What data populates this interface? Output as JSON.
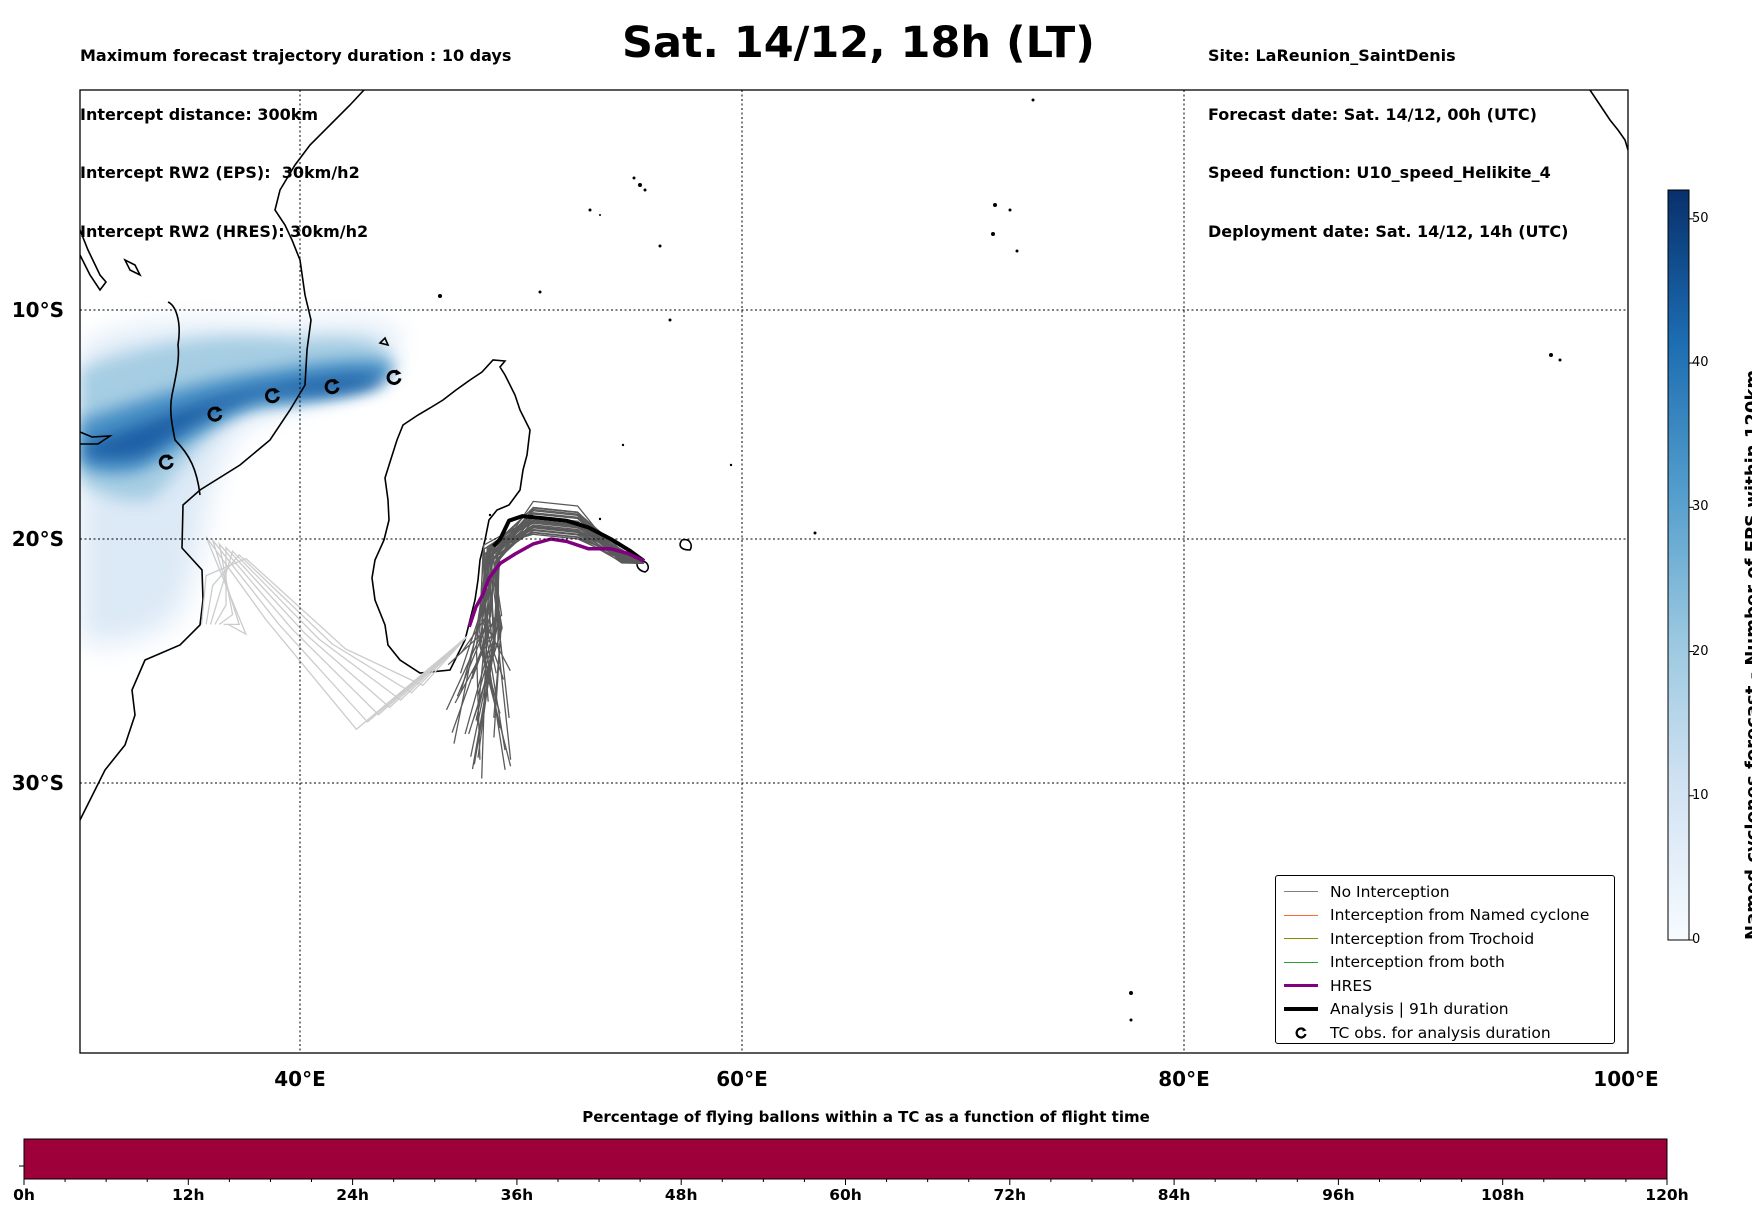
{
  "title": "Sat. 14/12, 18h (LT)",
  "info_left": [
    "Maximum forecast trajectory duration : 10 days",
    "Intercept distance: 300km",
    "Intercept RW2 (EPS):  30km/h2",
    "Intercept RW2 (HRES): 30km/h2"
  ],
  "info_right": [
    "Site: LaReunion_SaintDenis",
    "Forecast date: Sat. 14/12, 00h (UTC)",
    "Speed function: U10_speed_Helikite_4",
    "Deployment date: Sat. 14/12, 14h (UTC)"
  ],
  "map": {
    "lon_range": [
      30,
      100
    ],
    "lat_range": [
      0,
      -44
    ],
    "lat_labels": [
      {
        "value": -10,
        "label": "10°S"
      },
      {
        "value": -20,
        "label": "20°S"
      },
      {
        "value": -30,
        "label": "30°S"
      }
    ],
    "lon_labels": [
      {
        "value": 40,
        "label": "40°E"
      },
      {
        "value": 60,
        "label": "60°E"
      },
      {
        "value": 80,
        "label": "80°E"
      },
      {
        "value": 100,
        "label": "100°E"
      }
    ],
    "launch_site": {
      "lon": 55.5,
      "lat": -21.0
    },
    "tc_observations": [
      {
        "lon": 44.2,
        "lat": -12.9
      },
      {
        "lon": 41.4,
        "lat": -13.3
      },
      {
        "lon": 38.7,
        "lat": -13.7
      },
      {
        "lon": 36.1,
        "lat": -14.5
      },
      {
        "lon": 33.9,
        "lat": -16.6
      }
    ],
    "hres_track": [
      [
        55.5,
        -20.9
      ],
      [
        54.8,
        -20.6
      ],
      [
        54.0,
        -20.4
      ],
      [
        53.0,
        -20.4
      ],
      [
        52.0,
        -20.1
      ],
      [
        51.3,
        -20.0
      ],
      [
        50.5,
        -20.2
      ],
      [
        49.7,
        -20.6
      ],
      [
        49.0,
        -21.0
      ],
      [
        48.5,
        -21.6
      ],
      [
        48.2,
        -22.3
      ],
      [
        47.9,
        -22.8
      ],
      [
        47.6,
        -23.6
      ]
    ],
    "analysis_track": [
      [
        55.5,
        -20.9
      ],
      [
        54.9,
        -20.5
      ],
      [
        54.0,
        -20.0
      ],
      [
        53.0,
        -19.5
      ],
      [
        52.0,
        -19.2
      ],
      [
        51.0,
        -19.1
      ],
      [
        50.0,
        -19.0
      ],
      [
        49.4,
        -19.2
      ],
      [
        49.0,
        -20.0
      ],
      [
        48.7,
        -20.3
      ]
    ],
    "colors": {
      "hres": "#800080",
      "analysis": "#000000",
      "eps": "#555555",
      "eps_light": "#c8c8c8",
      "density": "#08306b"
    }
  },
  "legend": [
    {
      "label": "No Interception",
      "color": "#808080",
      "width": 1.2,
      "icon": "line"
    },
    {
      "label": "Interception from Named cyclone",
      "color": "#ff6a33",
      "width": 1.2,
      "icon": "line"
    },
    {
      "label": "Interception from Trochoid",
      "color": "#8b8b00",
      "width": 1.2,
      "icon": "line"
    },
    {
      "label": "Interception from both",
      "color": "#2ca02c",
      "width": 1.2,
      "icon": "line"
    },
    {
      "label": "HRES",
      "color": "#800080",
      "width": 3.5,
      "icon": "line"
    },
    {
      "label": "Analysis | 91h duration",
      "color": "#000000",
      "width": 4,
      "icon": "line"
    },
    {
      "label": "TC obs. for analysis duration",
      "color": "#000000",
      "width": 0,
      "icon": "cyclone-symbol"
    }
  ],
  "colorbar": {
    "title": "Named cyclones forecast - Number of EPS within 120km",
    "ticks": [
      0,
      10,
      20,
      30,
      40,
      50
    ],
    "max": 52
  },
  "flight_time_bar": {
    "title": "Percentage of flying ballons within a TC as a function of flight time",
    "color": "#9e003a",
    "labels": [
      "0h",
      "12h",
      "24h",
      "36h",
      "48h",
      "60h",
      "72h",
      "84h",
      "96h",
      "108h",
      "120h"
    ]
  }
}
